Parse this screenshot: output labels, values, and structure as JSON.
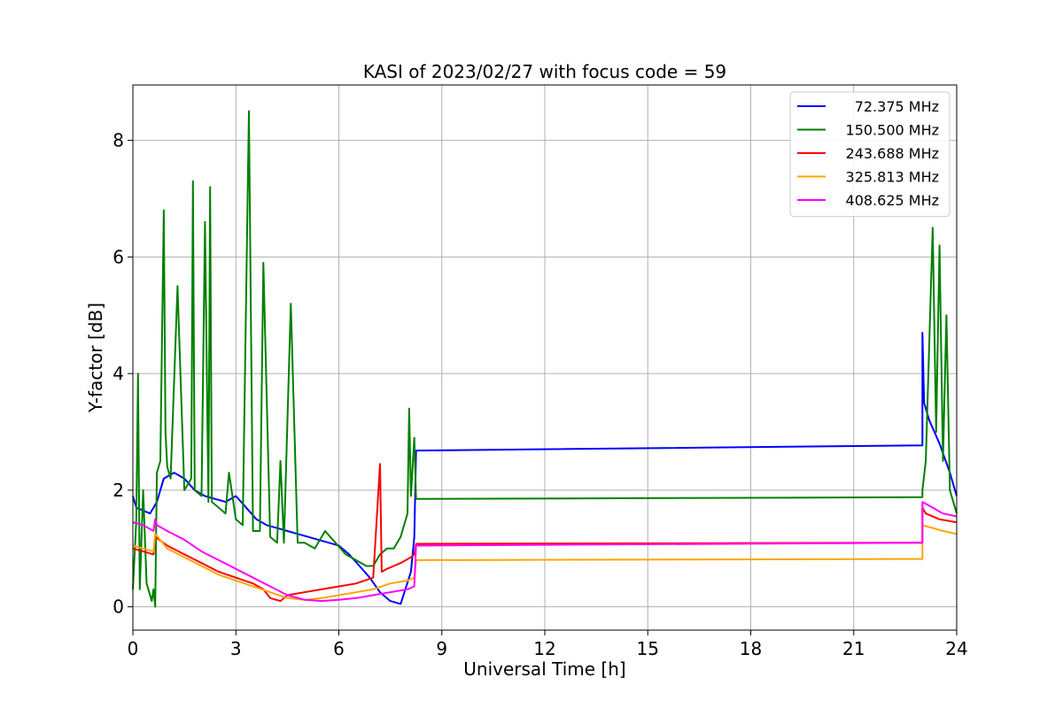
{
  "chart_data": {
    "type": "line",
    "title": "KASI of 2023/02/27 with focus code = 59",
    "xlabel": "Universal Time [h]",
    "ylabel": "Y-factor [dB]",
    "xlim": [
      0,
      24
    ],
    "ylim": [
      -0.4,
      8.95
    ],
    "xticks": [
      0,
      3,
      6,
      9,
      12,
      15,
      18,
      21,
      24
    ],
    "yticks": [
      0,
      2,
      4,
      6,
      8
    ],
    "grid": true,
    "legend_position": "top-right",
    "series": [
      {
        "name": "72.375 MHz",
        "color": "#0000ff",
        "x": [
          0,
          0.1,
          0.3,
          0.5,
          0.7,
          0.9,
          1.2,
          1.5,
          1.8,
          2.1,
          2.4,
          2.7,
          3.0,
          3.3,
          3.6,
          3.9,
          4.2,
          4.5,
          4.8,
          5.1,
          5.4,
          5.7,
          6.0,
          6.3,
          6.6,
          6.9,
          7.2,
          7.5,
          7.8,
          8.1,
          8.2,
          8.25,
          23.0,
          23.0,
          23.05,
          23.2,
          23.5,
          23.8,
          24.0
        ],
        "y": [
          1.9,
          1.7,
          1.65,
          1.6,
          1.8,
          2.2,
          2.3,
          2.2,
          2.0,
          1.9,
          1.85,
          1.8,
          1.9,
          1.7,
          1.5,
          1.4,
          1.35,
          1.3,
          1.25,
          1.2,
          1.15,
          1.1,
          1.05,
          0.9,
          0.7,
          0.5,
          0.25,
          0.1,
          0.05,
          0.6,
          1.2,
          2.68,
          2.77,
          4.7,
          3.5,
          3.2,
          2.8,
          2.3,
          1.9
        ]
      },
      {
        "name": "150.500 MHz",
        "color": "#008000",
        "x": [
          0,
          0.1,
          0.15,
          0.2,
          0.3,
          0.4,
          0.55,
          0.6,
          0.65,
          0.7,
          0.8,
          0.9,
          0.95,
          1.0,
          1.1,
          1.3,
          1.5,
          1.7,
          1.75,
          1.8,
          2.0,
          2.1,
          2.2,
          2.25,
          2.3,
          2.5,
          2.7,
          2.8,
          3.0,
          3.2,
          3.38,
          3.5,
          3.7,
          3.8,
          4.0,
          4.2,
          4.3,
          4.4,
          4.6,
          4.8,
          5.0,
          5.3,
          5.6,
          5.9,
          6.2,
          6.5,
          6.8,
          7.0,
          7.2,
          7.4,
          7.6,
          7.8,
          8.0,
          8.05,
          8.1,
          8.2,
          8.25,
          23.0,
          23.0,
          23.1,
          23.2,
          23.3,
          23.4,
          23.5,
          23.6,
          23.7,
          23.8,
          24.0
        ],
        "y": [
          0.3,
          1.5,
          4.0,
          0.3,
          2.0,
          0.4,
          0.1,
          0.3,
          0.0,
          2.3,
          2.5,
          6.8,
          3.0,
          2.4,
          2.2,
          5.5,
          2.0,
          2.2,
          7.3,
          2.0,
          1.9,
          6.6,
          1.8,
          7.2,
          1.8,
          1.7,
          1.6,
          2.3,
          1.5,
          1.4,
          8.5,
          1.3,
          1.3,
          5.9,
          1.2,
          1.1,
          2.5,
          1.1,
          5.2,
          1.1,
          1.1,
          1.0,
          1.3,
          1.1,
          0.9,
          0.8,
          0.7,
          0.7,
          0.9,
          1.0,
          1.0,
          1.2,
          1.6,
          3.4,
          1.9,
          2.9,
          1.85,
          1.88,
          2.0,
          2.5,
          4.5,
          6.5,
          3.0,
          6.2,
          2.5,
          5.0,
          2.0,
          1.6
        ]
      },
      {
        "name": "243.688 MHz",
        "color": "#ff0000",
        "x": [
          0,
          0.3,
          0.6,
          0.65,
          1.0,
          1.5,
          2.0,
          2.5,
          3.0,
          3.5,
          3.8,
          4.0,
          4.3,
          4.5,
          5.0,
          5.5,
          6.0,
          6.5,
          7.0,
          7.2,
          7.25,
          7.4,
          7.8,
          8.1,
          8.2,
          8.25,
          23.0,
          23.0,
          23.1,
          23.5,
          24.0
        ],
        "y": [
          1.0,
          0.95,
          0.9,
          1.2,
          1.05,
          0.9,
          0.75,
          0.6,
          0.5,
          0.4,
          0.3,
          0.15,
          0.1,
          0.2,
          0.25,
          0.3,
          0.35,
          0.4,
          0.5,
          2.45,
          0.6,
          0.65,
          0.75,
          0.85,
          0.9,
          1.08,
          1.1,
          1.7,
          1.6,
          1.5,
          1.45
        ]
      },
      {
        "name": "325.813 MHz",
        "color": "#ffa500",
        "x": [
          0,
          0.3,
          0.6,
          0.65,
          1.0,
          1.5,
          2.0,
          2.5,
          3.0,
          3.5,
          4.0,
          4.5,
          5.0,
          5.5,
          6.0,
          6.5,
          7.0,
          7.5,
          8.0,
          8.2,
          8.25,
          23.0,
          23.0,
          23.3,
          23.6,
          24.0
        ],
        "y": [
          1.05,
          1.0,
          0.95,
          1.25,
          1.0,
          0.85,
          0.7,
          0.55,
          0.45,
          0.35,
          0.25,
          0.15,
          0.12,
          0.15,
          0.2,
          0.25,
          0.3,
          0.4,
          0.45,
          0.5,
          0.8,
          0.82,
          1.4,
          1.35,
          1.3,
          1.25
        ]
      },
      {
        "name": "408.625 MHz",
        "color": "#ff00ff",
        "x": [
          0,
          0.3,
          0.6,
          0.65,
          0.7,
          1.0,
          1.5,
          2.0,
          2.5,
          3.0,
          3.5,
          4.0,
          4.5,
          5.0,
          5.5,
          6.0,
          6.5,
          7.0,
          7.5,
          8.0,
          8.2,
          8.25,
          23.0,
          23.0,
          23.3,
          23.6,
          24.0
        ],
        "y": [
          1.45,
          1.4,
          1.3,
          1.5,
          1.4,
          1.3,
          1.15,
          0.95,
          0.8,
          0.65,
          0.5,
          0.35,
          0.2,
          0.12,
          0.1,
          0.12,
          0.15,
          0.2,
          0.25,
          0.3,
          0.35,
          1.05,
          1.1,
          1.8,
          1.7,
          1.6,
          1.55
        ]
      }
    ]
  }
}
